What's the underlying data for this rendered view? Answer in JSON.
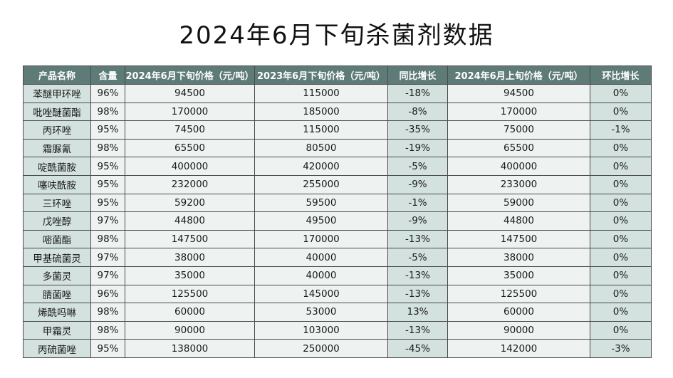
{
  "title": "2024年6月下旬杀菌剂数据",
  "table": {
    "headers": [
      "产品名称",
      "含量",
      "2024年6月下旬价格（元/吨）",
      "2023年6月下旬价格（元/吨）",
      "同比增长",
      "2024年6月上旬价格（元/吨）",
      "环比增长"
    ],
    "rows": [
      [
        "苯醚甲环唑",
        "96%",
        "94500",
        "115000",
        "-18%",
        "94500",
        "0%"
      ],
      [
        "吡唑醚菌酯",
        "98%",
        "170000",
        "185000",
        "-8%",
        "170000",
        "0%"
      ],
      [
        "丙环唑",
        "95%",
        "74500",
        "115000",
        "-35%",
        "75000",
        "-1%"
      ],
      [
        "霜脲氰",
        "98%",
        "65500",
        "80500",
        "-19%",
        "65500",
        "0%"
      ],
      [
        "啶酰菌胺",
        "95%",
        "400000",
        "420000",
        "-5%",
        "400000",
        "0%"
      ],
      [
        "噻呋酰胺",
        "95%",
        "232000",
        "255000",
        "-9%",
        "233000",
        "0%"
      ],
      [
        "三环唑",
        "95%",
        "59200",
        "59500",
        "-1%",
        "59000",
        "0%"
      ],
      [
        "戊唑醇",
        "97%",
        "44800",
        "49500",
        "-9%",
        "44800",
        "0%"
      ],
      [
        "嘧菌酯",
        "98%",
        "147500",
        "170000",
        "-13%",
        "147500",
        "0%"
      ],
      [
        "甲基硫菌灵",
        "97%",
        "38000",
        "40000",
        "-5%",
        "38000",
        "0%"
      ],
      [
        "多菌灵",
        "97%",
        "35000",
        "40000",
        "-13%",
        "35000",
        "0%"
      ],
      [
        "腈菌唑",
        "96%",
        "125500",
        "145000",
        "-13%",
        "125500",
        "0%"
      ],
      [
        "烯酰吗啉",
        "98%",
        "60000",
        "53000",
        "13%",
        "60000",
        "0%"
      ],
      [
        "甲霜灵",
        "98%",
        "90000",
        "103000",
        "-13%",
        "90000",
        "0%"
      ],
      [
        "丙硫菌唑",
        "95%",
        "138000",
        "250000",
        "-45%",
        "142000",
        "-3%"
      ]
    ]
  },
  "colors": {
    "header_bg": "#5e7b78",
    "header_text": "#ffffff",
    "tinted_col_bg": "#d3e1df",
    "light_col_bg": "#eef3f2",
    "border": "#4a4a4a"
  }
}
